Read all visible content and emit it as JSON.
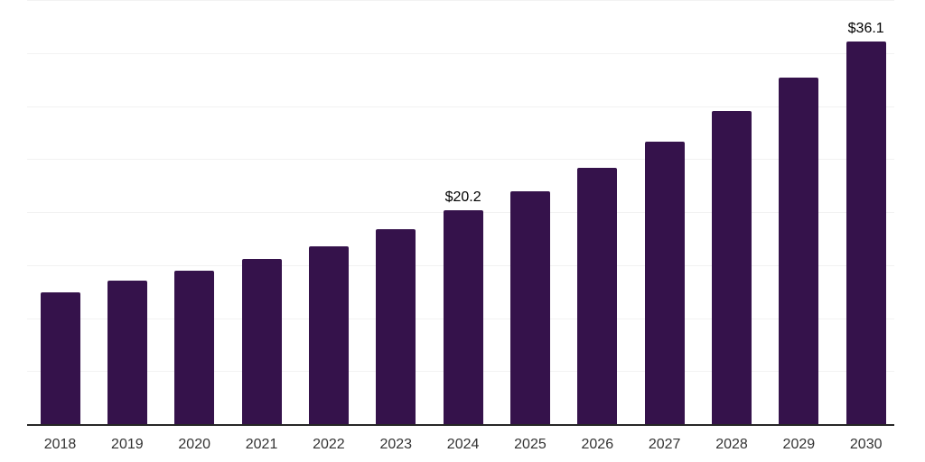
{
  "chart_data": {
    "type": "bar",
    "categories": [
      "2018",
      "2019",
      "2020",
      "2021",
      "2022",
      "2023",
      "2024",
      "2025",
      "2026",
      "2027",
      "2028",
      "2029",
      "2030"
    ],
    "values": [
      12.4,
      13.5,
      14.5,
      15.6,
      16.8,
      18.4,
      20.2,
      22.0,
      24.2,
      26.6,
      29.5,
      32.7,
      36.1
    ],
    "bar_labels": [
      {
        "index": 6,
        "text": "$20.2"
      },
      {
        "index": 12,
        "text": "$36.1"
      }
    ],
    "title": "",
    "xlabel": "",
    "ylabel": "",
    "ylim": [
      0,
      40
    ],
    "gridline_values": [
      5,
      10,
      15,
      20,
      25,
      30,
      35,
      40
    ],
    "grid": "horizontal only",
    "legend": "none",
    "bar_color": "#35124b",
    "gridline_color": "#f2f2f2",
    "axis_line_color": "#262626",
    "value_label_color": "#000000",
    "tick_label_color": "#333333"
  }
}
